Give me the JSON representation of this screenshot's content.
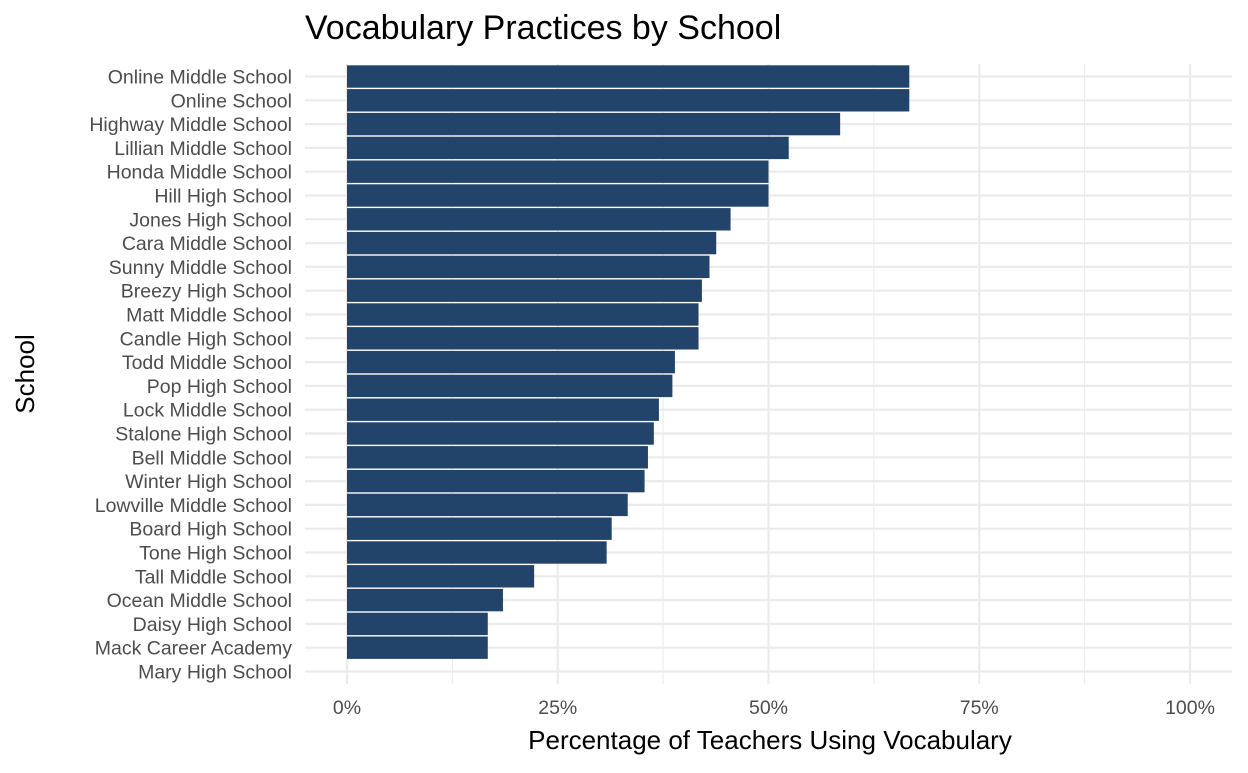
{
  "chart_data": {
    "type": "bar",
    "orientation": "horizontal",
    "title": "Vocabulary Practices by School",
    "xlabel": "Percentage of Teachers Using Vocabulary",
    "ylabel": "School",
    "xlim": [
      0,
      1
    ],
    "x_ticks": [
      0,
      0.25,
      0.5,
      0.75,
      1
    ],
    "x_tick_labels": [
      "0%",
      "25%",
      "50%",
      "75%",
      "100%"
    ],
    "grid": true,
    "legend": "none",
    "bar_color": "#23446a",
    "grid_color": "#ebebeb",
    "categories": [
      "Online Middle School",
      "Online School",
      "Highway Middle School",
      "Lillian Middle School",
      "Honda Middle School",
      "Hill High School",
      "Jones High School",
      "Cara Middle School",
      "Sunny Middle School",
      "Breezy High School",
      "Matt Middle School",
      "Candle High School",
      "Todd Middle School",
      "Pop High School",
      "Lock Middle School",
      "Stalone High School",
      "Bell Middle School",
      "Winter High School",
      "Lowville Middle School",
      "Board High School",
      "Tone High School",
      "Tall Middle School",
      "Ocean Middle School",
      "Daisy High School",
      "Mack Career Academy",
      "Mary High School"
    ],
    "values": [
      0.667,
      0.667,
      0.585,
      0.524,
      0.5,
      0.5,
      0.455,
      0.438,
      0.43,
      0.421,
      0.417,
      0.417,
      0.389,
      0.386,
      0.37,
      0.364,
      0.357,
      0.353,
      0.333,
      0.314,
      0.308,
      0.222,
      0.185,
      0.167,
      0.167,
      0
    ]
  }
}
